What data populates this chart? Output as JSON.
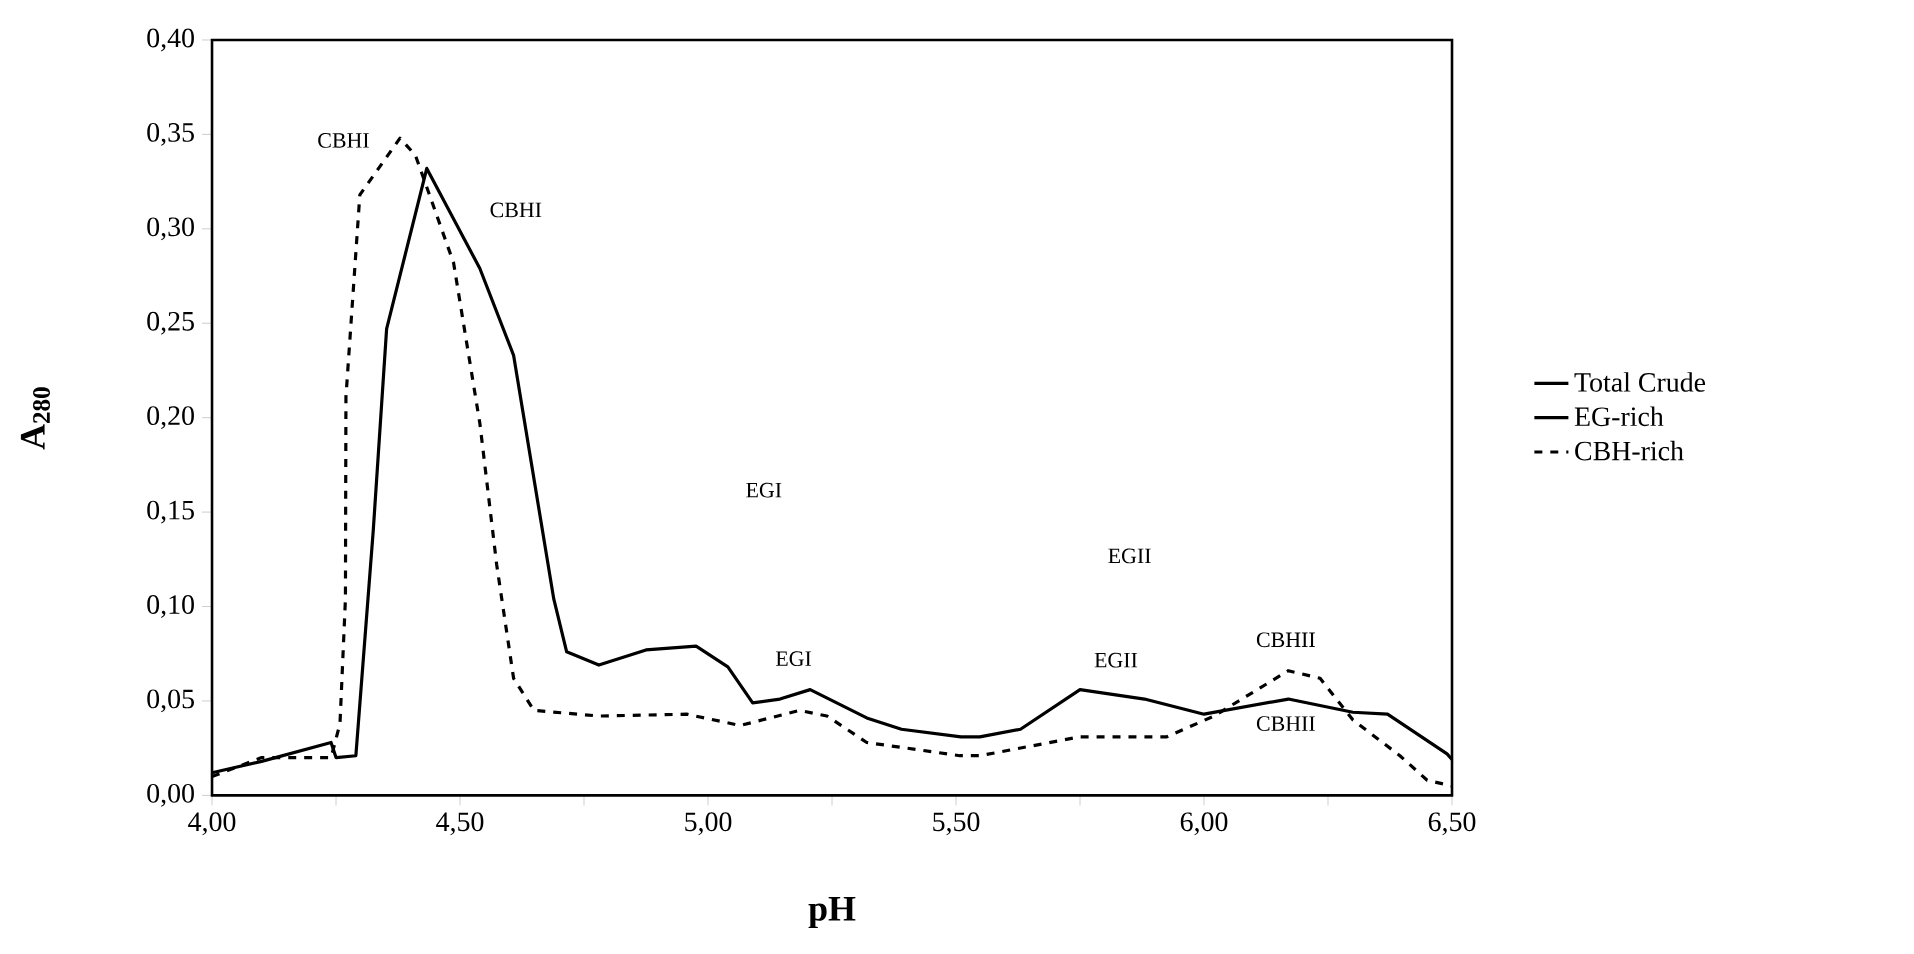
{
  "chart_data": {
    "type": "line",
    "xlabel": "pH",
    "ylabel": "A$_{280}$",
    "xlim": [
      4.0,
      6.5
    ],
    "ylim": [
      0,
      0.4
    ],
    "xticks": [
      {
        "value": 4.0,
        "label": "4,00"
      },
      {
        "value": 4.25,
        "label": null
      },
      {
        "value": 4.5,
        "label": "4,50"
      },
      {
        "value": 4.75,
        "label": null
      },
      {
        "value": 5.0,
        "label": "5,00"
      },
      {
        "value": 5.25,
        "label": null
      },
      {
        "value": 5.5,
        "label": "5,50"
      },
      {
        "value": 5.75,
        "label": null
      },
      {
        "value": 6.0,
        "label": "6,00"
      },
      {
        "value": 6.25,
        "label": null
      },
      {
        "value": 6.5,
        "label": "6,50"
      }
    ],
    "yticks": [
      {
        "value": 0,
        "label": "0,00"
      },
      {
        "value": 0.05,
        "label": "0,05"
      },
      {
        "value": 0.1,
        "label": "0,10"
      },
      {
        "value": 0.15,
        "label": "0,15"
      },
      {
        "value": 0.2,
        "label": "0,20"
      },
      {
        "value": 0.25,
        "label": "0,25"
      },
      {
        "value": 0.3,
        "label": "0,30"
      },
      {
        "value": 0.35,
        "label": "0,35"
      },
      {
        "value": 0.4,
        "label": "0,40"
      }
    ],
    "legend": "right",
    "grid": false,
    "marker": "none",
    "series": [
      {
        "name": "Total Crude",
        "color": "#000000",
        "line_style": "solid"
      },
      {
        "name": "EG-rich",
        "color": "#000000",
        "line_style": "solid",
        "x": [
          4.0,
          4.1,
          4.24,
          4.25,
          4.29,
          4.325,
          4.352,
          4.433,
          4.54,
          4.608,
          4.689,
          4.715,
          4.78,
          4.875,
          4.976,
          5.04,
          5.09,
          5.145,
          5.206,
          5.32,
          5.39,
          5.51,
          5.548,
          5.63,
          5.75,
          5.88,
          6.0,
          6.17,
          6.3,
          6.37,
          6.49,
          6.5
        ],
        "values": [
          0.012,
          0.018,
          0.028,
          0.02,
          0.021,
          0.14,
          0.247,
          0.332,
          0.279,
          0.233,
          0.104,
          0.076,
          0.069,
          0.077,
          0.079,
          0.068,
          0.049,
          0.051,
          0.056,
          0.041,
          0.035,
          0.031,
          0.031,
          0.035,
          0.056,
          0.051,
          0.043,
          0.051,
          0.044,
          0.043,
          0.022,
          0.019
        ]
      },
      {
        "name": "CBH-rich",
        "color": "#000000",
        "line_style": "dashed",
        "x": [
          4.0,
          4.1,
          4.24,
          4.258,
          4.269,
          4.27,
          4.298,
          4.379,
          4.41,
          4.487,
          4.54,
          4.574,
          4.608,
          4.649,
          4.78,
          4.957,
          5.065,
          5.185,
          5.24,
          5.32,
          5.508,
          5.548,
          5.75,
          5.925,
          6.02,
          6.17,
          6.234,
          6.3,
          6.395,
          6.45,
          6.5
        ],
        "values": [
          0.01,
          0.02,
          0.02,
          0.038,
          0.104,
          0.211,
          0.318,
          0.348,
          0.339,
          0.282,
          0.197,
          0.122,
          0.062,
          0.045,
          0.042,
          0.043,
          0.037,
          0.045,
          0.042,
          0.028,
          0.021,
          0.021,
          0.031,
          0.031,
          0.042,
          0.066,
          0.062,
          0.04,
          0.021,
          0.008,
          0.005
        ]
      }
    ],
    "annotations": [
      "CBHI",
      "CBHI",
      "EGI",
      "EGI",
      "EGII",
      "EGII",
      "CBHII",
      "CBHII"
    ]
  }
}
